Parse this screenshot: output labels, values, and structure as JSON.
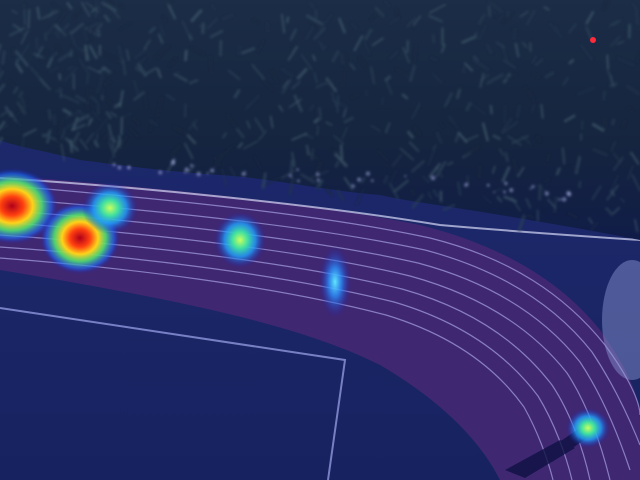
{
  "scene": {
    "description_colors": {
      "tree_dark": "#0d1a16",
      "tree_mid": "#1d3329",
      "tree_light": "#3a5546",
      "track_red": "#6a3654",
      "track_line": "#e8e3ff",
      "field": "#1d2c56",
      "infield_line": "#cfd7ff",
      "overlay_blue": "#1a1fb0"
    }
  },
  "heatmap": {
    "hotspots": [
      {
        "label": "person-hotspot-1",
        "intensity": 1.0
      },
      {
        "label": "person-hotspot-2",
        "intensity": 1.0
      },
      {
        "label": "person-hotspot-3",
        "intensity": 0.55
      },
      {
        "label": "person-hotspot-4",
        "intensity": 0.55
      },
      {
        "label": "person-hotspot-5",
        "intensity": 0.35
      },
      {
        "label": "person-hotspot-6",
        "intensity": 0.45
      }
    ]
  }
}
